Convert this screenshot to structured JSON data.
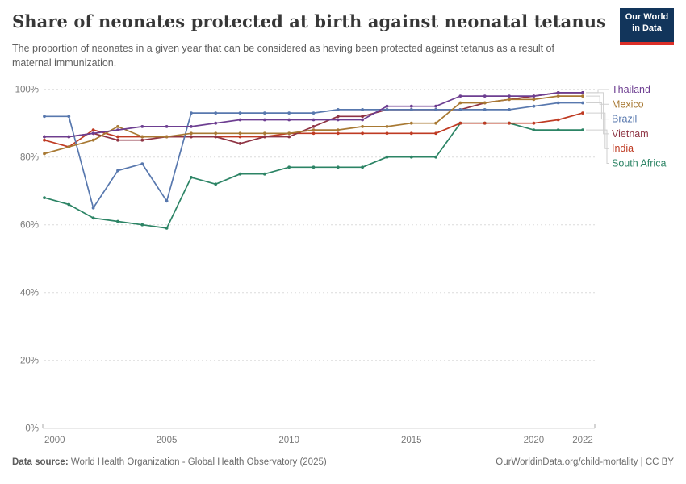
{
  "header": {
    "title": "Share of neonates protected at birth against neonatal tetanus",
    "subtitle": "The proportion of neonates in a given year that can be considered as having been protected against tetanus as a result of maternal immunization.",
    "logo": {
      "line1": "Our World",
      "line2": "in Data"
    }
  },
  "chart_data": {
    "type": "line",
    "title": "Share of neonates protected at birth against neonatal tetanus",
    "x": [
      2000,
      2001,
      2002,
      2003,
      2004,
      2005,
      2006,
      2007,
      2008,
      2009,
      2010,
      2011,
      2012,
      2013,
      2014,
      2015,
      2016,
      2017,
      2018,
      2019,
      2020,
      2021,
      2022
    ],
    "series": [
      {
        "name": "Thailand",
        "color": "#6D3E91",
        "values": [
          86,
          86,
          87,
          88,
          89,
          89,
          89,
          90,
          91,
          91,
          91,
          91,
          91,
          91,
          95,
          95,
          95,
          98,
          98,
          98,
          98,
          99,
          99
        ]
      },
      {
        "name": "Mexico",
        "color": "#A87933",
        "values": [
          81,
          83,
          85,
          89,
          86,
          86,
          87,
          87,
          87,
          87,
          87,
          88,
          88,
          89,
          89,
          90,
          90,
          96,
          96,
          97,
          97,
          98,
          98
        ]
      },
      {
        "name": "Brazil",
        "color": "#5878AE",
        "values": [
          92,
          92,
          65,
          76,
          78,
          67,
          93,
          93,
          93,
          93,
          93,
          93,
          94,
          94,
          94,
          94,
          94,
          94,
          94,
          94,
          95,
          96,
          96
        ]
      },
      {
        "name": "Vietnam",
        "color": "#8F3444",
        "values": [
          86,
          86,
          87,
          85,
          85,
          86,
          86,
          86,
          84,
          86,
          86,
          89,
          92,
          92,
          94,
          94,
          94,
          94,
          96,
          97,
          98,
          99,
          99
        ]
      },
      {
        "name": "India",
        "color": "#BF3B23",
        "values": [
          85,
          83,
          88,
          86,
          86,
          86,
          86,
          86,
          86,
          86,
          87,
          87,
          87,
          87,
          87,
          87,
          87,
          90,
          90,
          90,
          90,
          91,
          93
        ]
      },
      {
        "name": "South Africa",
        "color": "#2C8465",
        "values": [
          68,
          66,
          62,
          61,
          60,
          59,
          74,
          72,
          75,
          75,
          77,
          77,
          77,
          77,
          80,
          80,
          80,
          90,
          90,
          90,
          88,
          88,
          88
        ]
      }
    ],
    "ylim": [
      0,
      100
    ],
    "yticks": [
      "0%",
      "20%",
      "40%",
      "60%",
      "80%",
      "100%"
    ],
    "xticks": [
      2000,
      2005,
      2010,
      2015,
      2020,
      2022
    ],
    "grid": "horizontal-dashed",
    "legend_position": "right"
  },
  "footer": {
    "datasource_label": "Data source:",
    "datasource": "World Health Organization - Global Health Observatory (2025)",
    "link": "OurWorldinData.org/child-mortality | CC BY"
  }
}
